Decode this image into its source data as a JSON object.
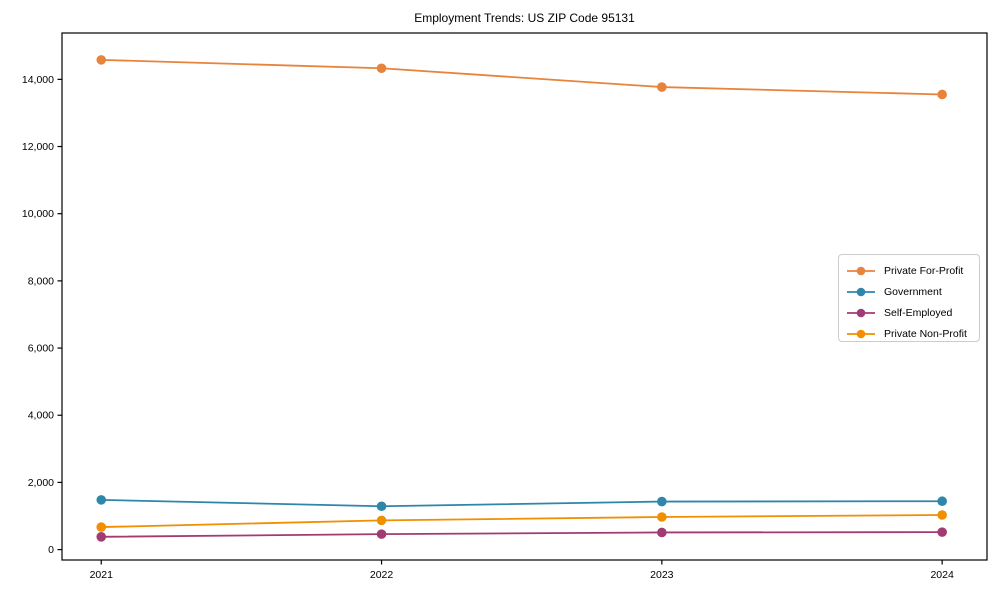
{
  "chart_data": {
    "type": "line",
    "title": "Employment Trends: US ZIP Code 95131",
    "xlabel": "",
    "ylabel": "",
    "x": [
      2021,
      2022,
      2023,
      2024
    ],
    "x_tick_labels": [
      "2021",
      "2022",
      "2023",
      "2024"
    ],
    "y_ticks": [
      {
        "value": 0,
        "label": "0"
      },
      {
        "value": 2000,
        "label": "2,000"
      },
      {
        "value": 4000,
        "label": "4,000"
      },
      {
        "value": 6000,
        "label": "6,000"
      },
      {
        "value": 8000,
        "label": "8,000"
      },
      {
        "value": 10000,
        "label": "10,000"
      },
      {
        "value": 12000,
        "label": "12,000"
      },
      {
        "value": 14000,
        "label": "14,000"
      }
    ],
    "xlim": [
      2020.86,
      2024.16
    ],
    "ylim": [
      -310,
      15380
    ],
    "grid": false,
    "legend_position": "center right",
    "series": [
      {
        "name": "Private For-Profit",
        "color": "#E8833C",
        "values": [
          14580,
          14330,
          13770,
          13550
        ]
      },
      {
        "name": "Government",
        "color": "#2E86AB",
        "values": [
          1480,
          1290,
          1430,
          1440
        ]
      },
      {
        "name": "Self-Employed",
        "color": "#A23B72",
        "values": [
          380,
          460,
          510,
          520
        ]
      },
      {
        "name": "Private Non-Profit",
        "color": "#F18F01",
        "values": [
          670,
          870,
          970,
          1030
        ]
      }
    ],
    "axis_color": "#000000"
  }
}
